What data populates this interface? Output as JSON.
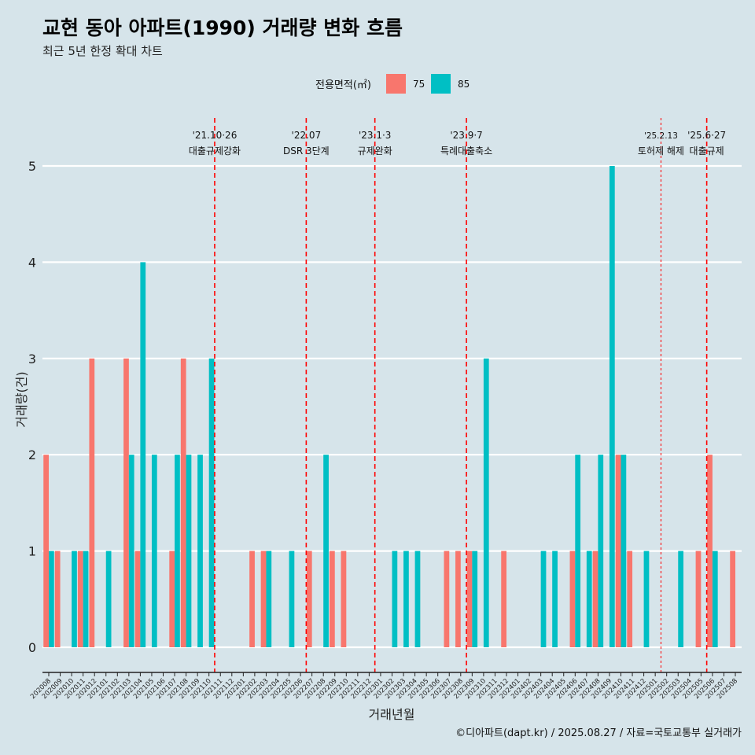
{
  "chart_data": {
    "type": "bar",
    "title": "교현 동아 아파트(1990) 거래량 변화 흐름",
    "subtitle": "최근 5년 한정 확대 차트",
    "xlabel": "거래년월",
    "ylabel": "거래량(건)",
    "ylim": [
      0,
      5
    ],
    "yticks": [
      "0",
      "1",
      "2",
      "3",
      "4",
      "5"
    ],
    "grid": "horizontal",
    "legend": {
      "title": "전용면적(㎡)",
      "position": "top",
      "items": [
        {
          "label": "75",
          "color": "#f8766d"
        },
        {
          "label": "85",
          "color": "#00bfc4"
        }
      ]
    },
    "categories": [
      "202008",
      "202009",
      "202010",
      "202011",
      "202012",
      "202101",
      "202102",
      "202103",
      "202104",
      "202105",
      "202106",
      "202107",
      "202108",
      "202109",
      "202110",
      "202111",
      "202112",
      "202201",
      "202202",
      "202203",
      "202204",
      "202205",
      "202206",
      "202207",
      "202208",
      "202209",
      "202210",
      "202211",
      "202212",
      "202301",
      "202302",
      "202303",
      "202304",
      "202305",
      "202306",
      "202307",
      "202308",
      "202309",
      "202310",
      "202311",
      "202312",
      "202401",
      "202402",
      "202403",
      "202404",
      "202405",
      "202406",
      "202407",
      "202408",
      "202409",
      "202410",
      "202411",
      "202412",
      "202501",
      "202502",
      "202503",
      "202504",
      "202505",
      "202506",
      "202507",
      "202508"
    ],
    "series": [
      {
        "name": "75",
        "color": "#f8766d",
        "values": [
          2,
          1,
          0,
          1,
          3,
          0,
          0,
          3,
          1,
          0,
          0,
          1,
          3,
          0,
          0,
          0,
          0,
          0,
          1,
          1,
          0,
          0,
          0,
          1,
          0,
          1,
          1,
          0,
          0,
          0,
          0,
          0,
          0,
          0,
          0,
          1,
          1,
          1,
          0,
          0,
          1,
          0,
          0,
          0,
          0,
          0,
          1,
          0,
          1,
          0,
          2,
          1,
          0,
          0,
          0,
          0,
          0,
          1,
          2,
          0,
          1
        ]
      },
      {
        "name": "85",
        "color": "#00bfc4",
        "values": [
          1,
          0,
          1,
          1,
          0,
          1,
          0,
          2,
          4,
          2,
          0,
          2,
          2,
          2,
          3,
          0,
          0,
          0,
          0,
          1,
          0,
          1,
          0,
          0,
          2,
          0,
          0,
          0,
          0,
          0,
          1,
          1,
          1,
          0,
          0,
          0,
          0,
          1,
          3,
          0,
          0,
          0,
          0,
          1,
          1,
          0,
          2,
          1,
          2,
          5,
          2,
          0,
          1,
          0,
          0,
          1,
          0,
          0,
          1,
          0,
          0
        ]
      }
    ],
    "events": [
      {
        "x": "202111",
        "date": "'21.10·26",
        "label": "대출규제강화"
      },
      {
        "x": "202207",
        "date": "'22.07",
        "label": "DSR 3단계"
      },
      {
        "x": "202301",
        "date": "'23.1·3",
        "label": "규제완화"
      },
      {
        "x": "202309",
        "date": "'23.9·7",
        "label": "특례대출축소"
      },
      {
        "x": "202502",
        "date": "'25.2.13",
        "label": "토허제 해제"
      },
      {
        "x": "202506",
        "date": "'25.6·27",
        "label": "대출규제"
      }
    ],
    "event_color": "#ff0000",
    "caption": "©디아파트(dapt.kr) / 2025.08.27 / 자료=국토교통부 실거래가"
  }
}
